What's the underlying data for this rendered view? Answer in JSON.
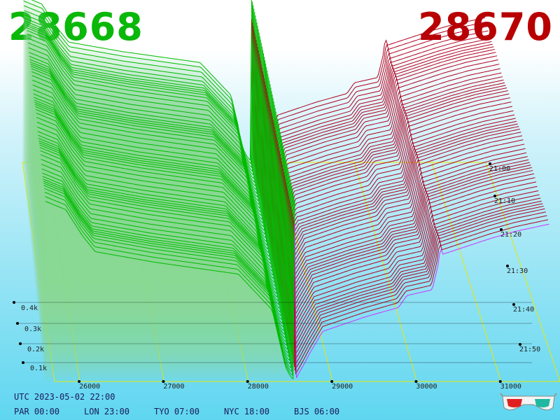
{
  "header": {
    "bid_price": "28668",
    "ask_price": "28670",
    "bid_color": "#0ab80a",
    "ask_color": "#b80000"
  },
  "footer": {
    "utc_time": "UTC 2023-05-02 22:00",
    "timezones": [
      "PAR 00:00",
      "LON 23:00",
      "TYO 07:00",
      "NYC 18:00",
      "BJS 06:00"
    ]
  },
  "chart_data": {
    "type": "area",
    "x_ticks": [
      26000,
      27000,
      28000,
      29000,
      30000,
      31000
    ],
    "x_labels": [
      "26000",
      "27000",
      "28000",
      "29000",
      "30000",
      "31000"
    ],
    "xlim": [
      25700,
      31700
    ],
    "z_ticks": [
      100,
      200,
      300,
      400
    ],
    "z_labels": [
      "0.1k",
      "0.2k",
      "0.3k",
      "0.4k"
    ],
    "z_max": 460,
    "time_ticks": [
      "21:00",
      "21:10",
      "21:20",
      "21:30",
      "21:40",
      "21:50"
    ],
    "colors": {
      "bids": "#00bb00",
      "asks": "#b00020",
      "frame": "#e8e800",
      "latest_ask": "#cc33ff"
    },
    "mid_price": 28669,
    "snapshots": 60,
    "bids_profile": [
      [
        28660,
        4
      ],
      [
        28620,
        10
      ],
      [
        28560,
        30
      ],
      [
        28500,
        75
      ],
      [
        28400,
        150
      ],
      [
        28000,
        225
      ],
      [
        27000,
        250
      ],
      [
        26300,
        272
      ],
      [
        26150,
        305
      ],
      [
        25950,
        360
      ],
      [
        25700,
        378
      ]
    ],
    "asks_profile": [
      [
        28680,
        4
      ],
      [
        28700,
        12
      ],
      [
        28760,
        30
      ],
      [
        28850,
        60
      ],
      [
        29000,
        105
      ],
      [
        29500,
        135
      ],
      [
        29900,
        155
      ],
      [
        30000,
        180
      ],
      [
        30300,
        192
      ],
      [
        30400,
        265
      ],
      [
        31000,
        300
      ],
      [
        31300,
        315
      ],
      [
        31700,
        330
      ]
    ],
    "ask_wall_price": 30400
  }
}
